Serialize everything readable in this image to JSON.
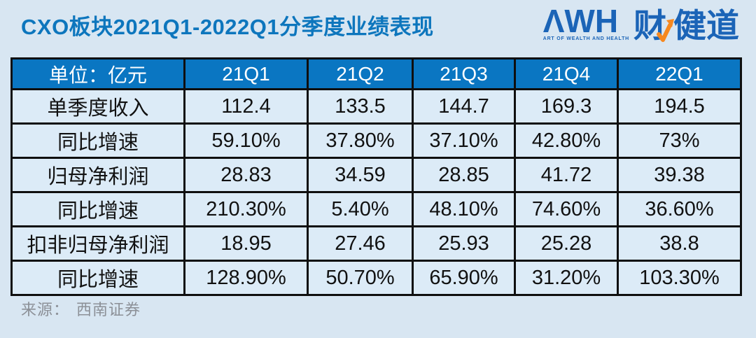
{
  "title": "CXO板块2021Q1-2022Q1分季度业绩表现",
  "logo": {
    "wordmark": "ΛWH",
    "tagline": "ART OF WEALTH AND HEALTH",
    "brand_cn_left": "财",
    "brand_cn_right": "健道",
    "brand_color": "#1b64b7",
    "accent_color": "#f6881f"
  },
  "source": {
    "label": "来源：",
    "value": "西南证券"
  },
  "chart_data": {
    "type": "table",
    "title": "CXO板块2021Q1-2022Q1分季度业绩表现",
    "unit_label": "单位：亿元",
    "columns": [
      "21Q1",
      "21Q2",
      "21Q3",
      "21Q4",
      "22Q1"
    ],
    "rows": [
      {
        "label": "单季度收入",
        "values": [
          "112.4",
          "133.5",
          "144.7",
          "169.3",
          "194.5"
        ]
      },
      {
        "label": "同比增速",
        "values": [
          "59.10%",
          "37.80%",
          "37.10%",
          "42.80%",
          "73%"
        ]
      },
      {
        "label": "归母净利润",
        "values": [
          "28.83",
          "34.59",
          "28.85",
          "41.72",
          "39.38"
        ]
      },
      {
        "label": "同比增速",
        "values": [
          "210.30%",
          "5.40%",
          "48.10%",
          "74.60%",
          "36.60%"
        ]
      },
      {
        "label": "扣非归母净利润",
        "values": [
          "18.95",
          "27.46",
          "25.93",
          "25.28",
          "38.8"
        ]
      },
      {
        "label": "同比增速",
        "values": [
          "128.90%",
          "50.70%",
          "65.90%",
          "31.20%",
          "103.30%"
        ]
      }
    ],
    "colors": {
      "page_bg": "#d8e6f2",
      "header_bg": "#0a76c2",
      "header_text": "#ffffff",
      "cell_bg": "#dcebf7",
      "border": "#0f0f0f",
      "title": "#0d76bd"
    }
  }
}
